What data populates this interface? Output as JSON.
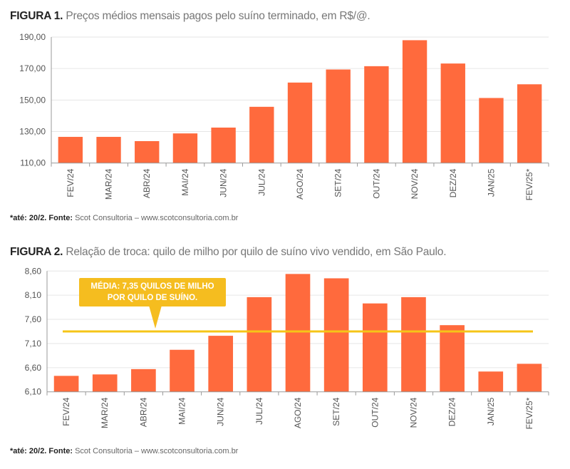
{
  "chart_data": [
    {
      "type": "bar",
      "title_bold": "FIGURA 1.",
      "title": "Preços médios mensais pagos pelo suíno terminado, em R$/@.",
      "categories": [
        "FEV/24",
        "MAR/24",
        "ABR/24",
        "MAI/24",
        "JUN/24",
        "JUL/24",
        "AGO/24",
        "SET/24",
        "OUT/24",
        "NOV/24",
        "DEZ/24",
        "JAN/25",
        "FEV/25*"
      ],
      "values": [
        126.6,
        126.6,
        123.9,
        128.8,
        132.5,
        145.7,
        161.1,
        169.4,
        171.5,
        188.0,
        173.2,
        151.3,
        160.0
      ],
      "ylim": [
        110,
        190
      ],
      "yticks": [
        "110,00",
        "130,00",
        "150,00",
        "170,00",
        "190,00"
      ],
      "ytick_values": [
        110,
        130,
        150,
        170,
        190
      ],
      "xlabel": "",
      "ylabel": "",
      "grid": true,
      "bar_color": "#ff6a3d",
      "footnote_bold": "*até: 20/2.  Fonte:",
      "footnote": " Scot Consultoria – www.scotconsultoria.com.br"
    },
    {
      "type": "bar",
      "title_bold": "FIGURA 2.",
      "title": "Relação de troca: quilo de milho por quilo de suíno vivo vendido, em São Paulo.",
      "categories": [
        "FEV/24",
        "MAR/24",
        "ABR/24",
        "MAI/24",
        "JUN/24",
        "JUL/24",
        "AGO/24",
        "SET/24",
        "OUT/24",
        "NOV/24",
        "DEZ/24",
        "JAN/25",
        "FEV/25*"
      ],
      "values": [
        6.43,
        6.46,
        6.57,
        6.97,
        7.26,
        8.06,
        8.54,
        8.45,
        7.93,
        8.06,
        7.48,
        6.52,
        6.68
      ],
      "ylim": [
        6.1,
        8.6
      ],
      "yticks": [
        "6,10",
        "6,60",
        "7,10",
        "7,60",
        "8,10",
        "8,60"
      ],
      "ytick_values": [
        6.1,
        6.6,
        7.1,
        7.6,
        8.1,
        8.6
      ],
      "xlabel": "",
      "ylabel": "",
      "grid": true,
      "bar_color": "#ff6a3d",
      "mean_line": {
        "value": 7.35,
        "color": "#f5c518",
        "label_line1": "MÉDIA: 7,35 QUILOS DE MILHO",
        "label_line2": "POR QUILO DE SUÍNO."
      },
      "footnote_bold": "*até: 20/2.  Fonte:",
      "footnote": " Scot Consultoria – www.scotconsultoria.com.br"
    }
  ]
}
